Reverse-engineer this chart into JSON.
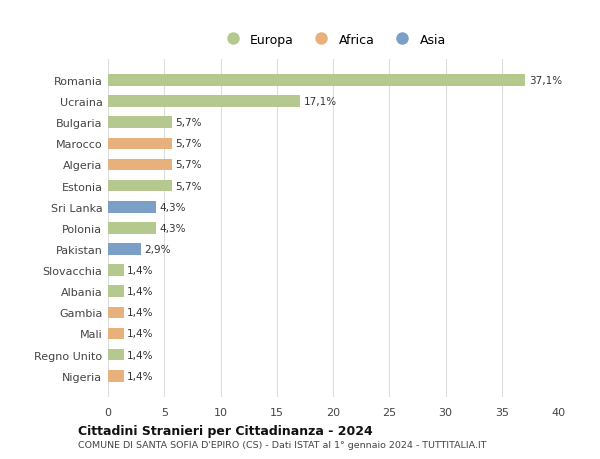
{
  "countries": [
    "Romania",
    "Ucraina",
    "Bulgaria",
    "Marocco",
    "Algeria",
    "Estonia",
    "Sri Lanka",
    "Polonia",
    "Pakistan",
    "Slovacchia",
    "Albania",
    "Gambia",
    "Mali",
    "Regno Unito",
    "Nigeria"
  ],
  "values": [
    37.1,
    17.1,
    5.7,
    5.7,
    5.7,
    5.7,
    4.3,
    4.3,
    2.9,
    1.4,
    1.4,
    1.4,
    1.4,
    1.4,
    1.4
  ],
  "labels": [
    "37,1%",
    "17,1%",
    "5,7%",
    "5,7%",
    "5,7%",
    "5,7%",
    "4,3%",
    "4,3%",
    "2,9%",
    "1,4%",
    "1,4%",
    "1,4%",
    "1,4%",
    "1,4%",
    "1,4%"
  ],
  "continents": [
    "Europa",
    "Europa",
    "Europa",
    "Africa",
    "Africa",
    "Europa",
    "Asia",
    "Europa",
    "Asia",
    "Europa",
    "Europa",
    "Africa",
    "Africa",
    "Europa",
    "Africa"
  ],
  "colors": {
    "Europa": "#b5c98e",
    "Africa": "#e8b07a",
    "Asia": "#7b9fc7"
  },
  "xlim": [
    0,
    40
  ],
  "xticks": [
    0,
    5,
    10,
    15,
    20,
    25,
    30,
    35,
    40
  ],
  "title": "Cittadini Stranieri per Cittadinanza - 2024",
  "subtitle": "COMUNE DI SANTA SOFIA D'EPIRO (CS) - Dati ISTAT al 1° gennaio 2024 - TUTTITALIA.IT",
  "background_color": "#ffffff",
  "grid_color": "#dddddd",
  "bar_height": 0.55
}
